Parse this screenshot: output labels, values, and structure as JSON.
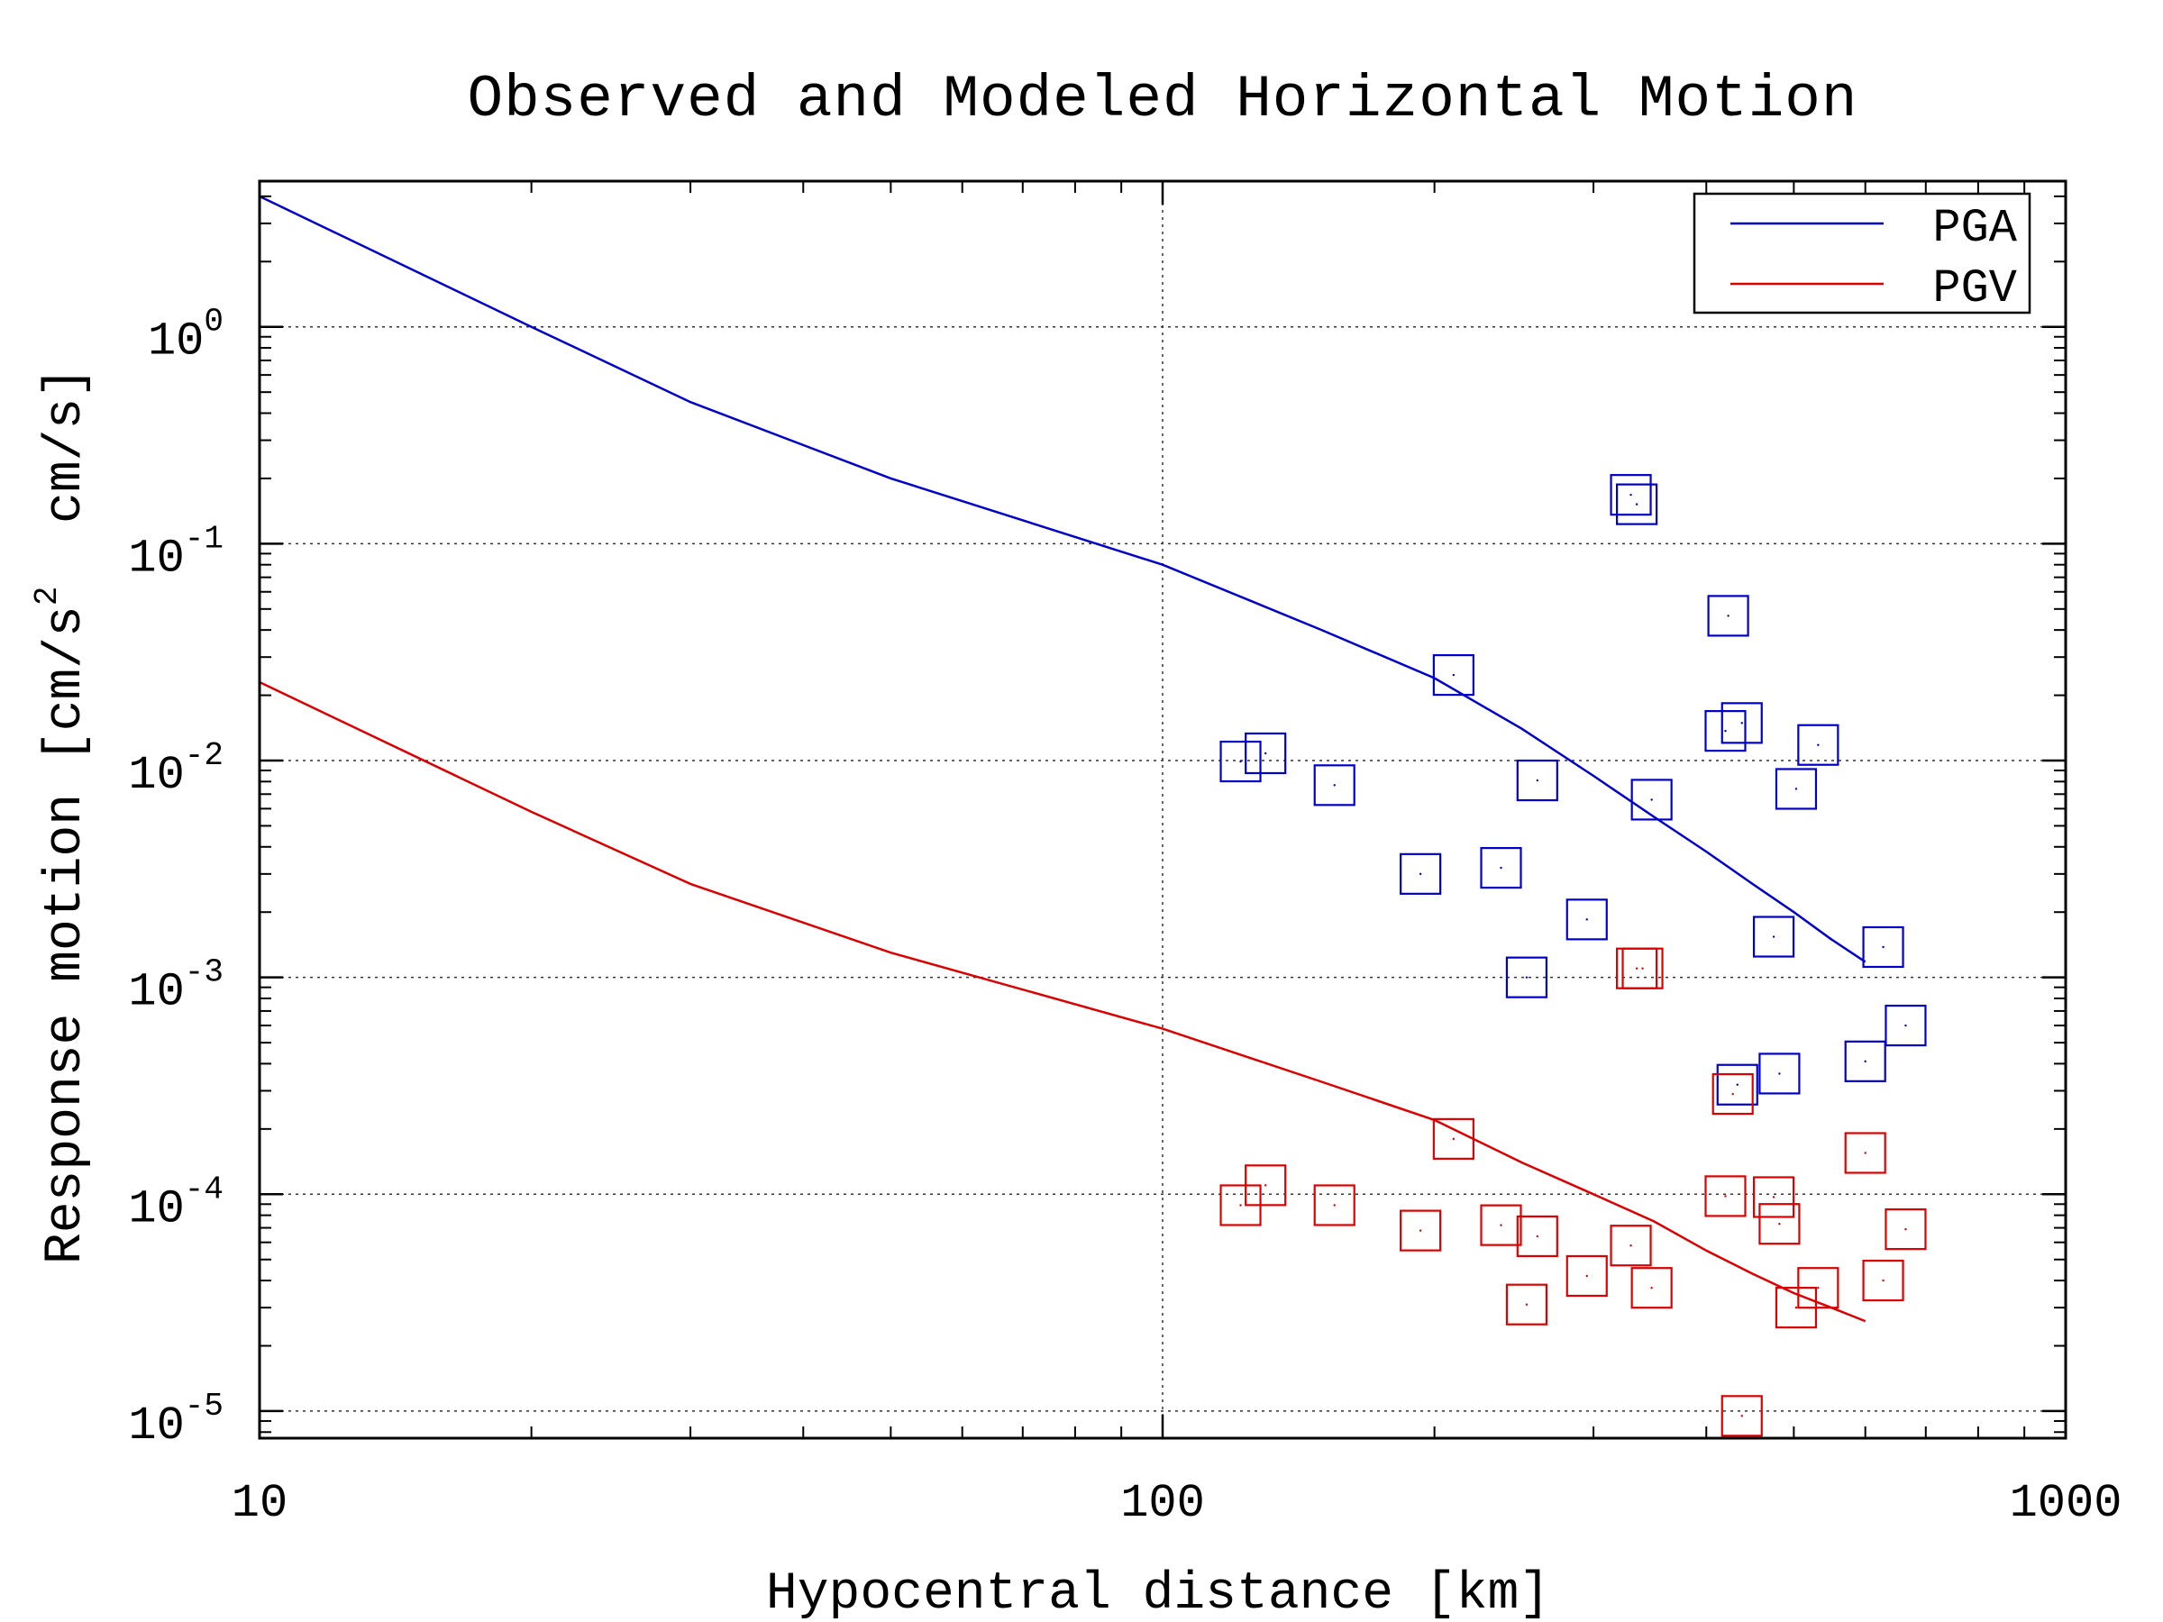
{
  "chart_data": {
    "type": "scatter",
    "title": "Observed and Modeled Horizontal Motion",
    "xlabel": "Hypocentral distance [km]",
    "ylabel": "Response motion [cm/s² cm/s]",
    "ylabel_parts": {
      "before": "Response motion [cm/s",
      "sup": "2",
      "after": "  cm/s]"
    },
    "x_scale": "log",
    "y_scale": "log",
    "xlim": [
      10,
      1000
    ],
    "ylim": [
      7.5e-06,
      4.7
    ],
    "x_ticks": [
      {
        "value": 10,
        "label": "10"
      },
      {
        "value": 100,
        "label": "100"
      },
      {
        "value": 1000,
        "label": "1000"
      }
    ],
    "y_ticks": [
      {
        "value": 1,
        "base": "10",
        "exp": "0"
      },
      {
        "value": 0.1,
        "base": "10",
        "exp": "-1"
      },
      {
        "value": 0.01,
        "base": "10",
        "exp": "-2"
      },
      {
        "value": 0.001,
        "base": "10",
        "exp": "-3"
      },
      {
        "value": 0.0001,
        "base": "10",
        "exp": "-4"
      },
      {
        "value": 1e-05,
        "base": "10",
        "exp": "-5"
      }
    ],
    "grid": true,
    "legend_position": "top-right",
    "series": [
      {
        "name": "PGA",
        "kind": "line",
        "color": "#0000cc",
        "x": [
          10,
          20,
          30,
          50,
          100,
          150,
          200,
          250,
          300,
          350,
          400,
          450,
          500,
          550,
          600
        ],
        "y": [
          4.0,
          1.0,
          0.45,
          0.2,
          0.08,
          0.04,
          0.024,
          0.014,
          0.0085,
          0.0055,
          0.0038,
          0.0027,
          0.002,
          0.0015,
          0.00118
        ]
      },
      {
        "name": "PGV",
        "kind": "line",
        "color": "#dd0000",
        "x": [
          10,
          20,
          30,
          50,
          100,
          150,
          200,
          250,
          300,
          350,
          400,
          450,
          500,
          550,
          600
        ],
        "y": [
          0.023,
          0.0058,
          0.0027,
          0.0013,
          0.00058,
          0.00033,
          0.00022,
          0.00014,
          0.0001,
          7.5e-05,
          5.5e-05,
          4.3e-05,
          3.5e-05,
          3e-05,
          2.6e-05
        ]
      },
      {
        "name": "",
        "kind": "markers",
        "color": "#0000cc",
        "x": [
          122,
          130,
          155,
          193,
          210,
          237,
          253,
          260,
          295,
          330,
          335,
          348,
          420,
          423,
          433,
          438,
          475,
          482,
          503,
          532,
          600,
          628,
          665
        ],
        "y": [
          0.0099,
          0.0108,
          0.0077,
          0.003,
          0.0248,
          0.0032,
          0.001,
          0.0081,
          0.00185,
          0.168,
          0.152,
          0.0066,
          0.0137,
          0.0465,
          0.00032,
          0.0149,
          0.00154,
          0.00036,
          0.0074,
          0.0118,
          0.00041,
          0.00138,
          0.0006
        ]
      },
      {
        "name": "",
        "kind": "markers",
        "color": "#dd0000",
        "x": [
          122,
          130,
          155,
          193,
          210,
          237,
          253,
          260,
          295,
          330,
          335,
          340,
          348,
          420,
          428,
          438,
          475,
          482,
          503,
          532,
          600,
          628,
          665
        ],
        "y": [
          8.9e-05,
          0.00011,
          8.9e-05,
          6.8e-05,
          0.00018,
          7.2e-05,
          3.1e-05,
          6.4e-05,
          4.2e-05,
          5.8e-05,
          0.0011,
          0.0011,
          3.7e-05,
          9.8e-05,
          0.00029,
          9.5e-06,
          9.7e-05,
          7.3e-05,
          3e-05,
          3.7e-05,
          0.000155,
          4e-05,
          6.9e-05
        ]
      }
    ]
  }
}
